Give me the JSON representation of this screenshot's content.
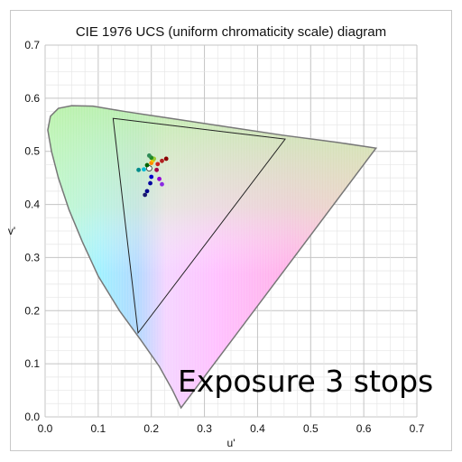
{
  "chart_data": {
    "type": "scatter",
    "title": "CIE 1976 UCS (uniform chromaticity scale) diagram",
    "xlabel": "u'",
    "ylabel": "v'",
    "xlim": [
      0.0,
      0.7
    ],
    "ylim": [
      0.0,
      0.7
    ],
    "xticks": [
      "0.0",
      "0.1",
      "0.2",
      "0.3",
      "0.4",
      "0.5",
      "0.6",
      "0.7"
    ],
    "yticks": [
      "0.0",
      "0.1",
      "0.2",
      "0.3",
      "0.4",
      "0.5",
      "0.6",
      "0.7"
    ],
    "grid": true,
    "spectral_locus": [
      [
        0.256,
        0.017
      ],
      [
        0.24,
        0.05
      ],
      [
        0.215,
        0.095
      ],
      [
        0.18,
        0.145
      ],
      [
        0.14,
        0.2
      ],
      [
        0.1,
        0.265
      ],
      [
        0.07,
        0.33
      ],
      [
        0.045,
        0.39
      ],
      [
        0.025,
        0.45
      ],
      [
        0.012,
        0.5
      ],
      [
        0.005,
        0.54
      ],
      [
        0.01,
        0.566
      ],
      [
        0.025,
        0.581
      ],
      [
        0.05,
        0.586
      ],
      [
        0.09,
        0.585
      ],
      [
        0.15,
        0.575
      ],
      [
        0.25,
        0.56
      ],
      [
        0.35,
        0.545
      ],
      [
        0.45,
        0.53
      ],
      [
        0.55,
        0.517
      ],
      [
        0.623,
        0.506
      ]
    ],
    "gamut_triangle": [
      [
        0.128,
        0.562
      ],
      [
        0.452,
        0.523
      ],
      [
        0.175,
        0.158
      ]
    ],
    "points": [
      {
        "u": 0.196,
        "v": 0.468,
        "color": "#ffffff"
      },
      {
        "u": 0.2,
        "v": 0.478,
        "color": "#ff8c00"
      },
      {
        "u": 0.203,
        "v": 0.483,
        "color": "#f5c400"
      },
      {
        "u": 0.205,
        "v": 0.486,
        "color": "#9acd32"
      },
      {
        "u": 0.2,
        "v": 0.488,
        "color": "#228b22"
      },
      {
        "u": 0.196,
        "v": 0.492,
        "color": "#2e8b57"
      },
      {
        "u": 0.212,
        "v": 0.476,
        "color": "#cc2222"
      },
      {
        "u": 0.22,
        "v": 0.482,
        "color": "#b22222"
      },
      {
        "u": 0.228,
        "v": 0.486,
        "color": "#8b0000"
      },
      {
        "u": 0.21,
        "v": 0.465,
        "color": "#a0004a"
      },
      {
        "u": 0.215,
        "v": 0.448,
        "color": "#9400d3"
      },
      {
        "u": 0.22,
        "v": 0.438,
        "color": "#8a2be2"
      },
      {
        "u": 0.2,
        "v": 0.452,
        "color": "#0000cd"
      },
      {
        "u": 0.198,
        "v": 0.44,
        "color": "#0000a0"
      },
      {
        "u": 0.192,
        "v": 0.425,
        "color": "#00008b"
      },
      {
        "u": 0.188,
        "v": 0.418,
        "color": "#191970"
      },
      {
        "u": 0.186,
        "v": 0.466,
        "color": "#00bcd4"
      },
      {
        "u": 0.176,
        "v": 0.465,
        "color": "#008b8b"
      },
      {
        "u": 0.192,
        "v": 0.474,
        "color": "#006400"
      }
    ]
  },
  "overlay_text": "Exposure  3  stops"
}
